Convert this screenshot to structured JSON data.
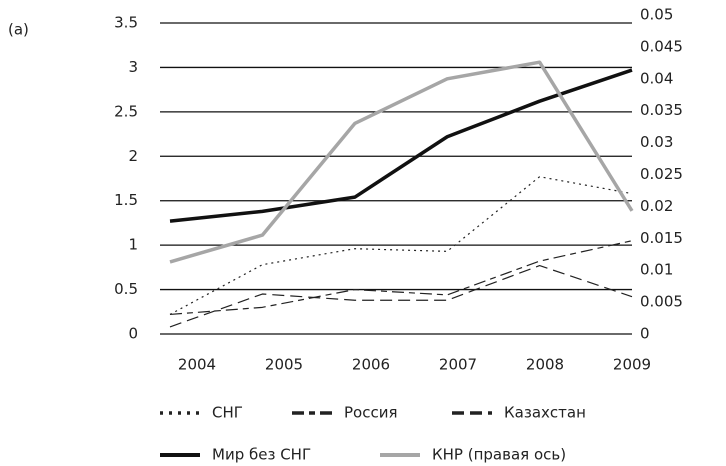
{
  "chart_data": {
    "type": "line",
    "panel_label": "(a)",
    "categories": [
      "2004",
      "2005",
      "2006",
      "2007",
      "2008",
      "2009"
    ],
    "ylim": [
      0,
      3.5
    ],
    "yticks": [
      0,
      0.5,
      1,
      1.5,
      2,
      2.5,
      3,
      3.5
    ],
    "y2lim": [
      0,
      0.05
    ],
    "y2ticks": [
      0,
      0.005,
      0.01,
      0.015,
      0.02,
      0.025,
      0.03,
      0.035,
      0.04,
      0.045,
      0.05
    ],
    "grid": true,
    "series": [
      {
        "name": "СНГ",
        "color": "#222222",
        "style": "dotted",
        "values": [
          0.22,
          0.78,
          0.96,
          0.93,
          1.77,
          1.58
        ]
      },
      {
        "name": "Россия",
        "color": "#222222",
        "style": "dashdot",
        "values": [
          0.22,
          0.3,
          0.5,
          0.44,
          0.82,
          1.05
        ]
      },
      {
        "name": "Казахстан",
        "color": "#222222",
        "style": "dashed",
        "values": [
          0.08,
          0.45,
          0.38,
          0.38,
          0.77,
          0.42
        ]
      },
      {
        "name": "Мир без СНГ",
        "color": "#111111",
        "style": "solid",
        "values": [
          1.27,
          1.38,
          1.54,
          2.22,
          2.62,
          2.97
        ]
      },
      {
        "name": "КНР (правая ось)",
        "color": "#a6a6a6",
        "style": "solid",
        "axis": "y2",
        "values": [
          0.0113,
          0.0155,
          0.033,
          0.04,
          0.0426,
          0.0193
        ]
      }
    ]
  }
}
